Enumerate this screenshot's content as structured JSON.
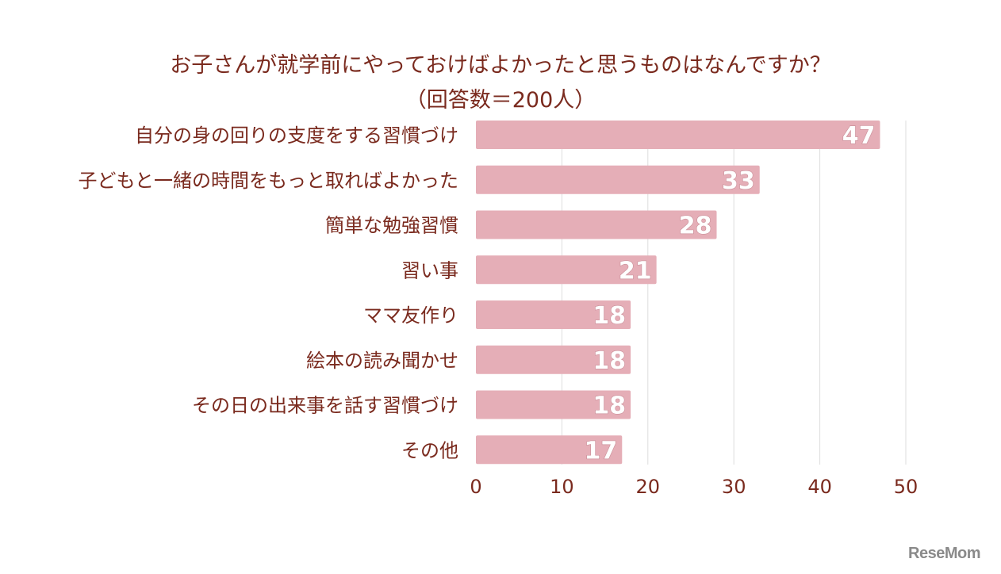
{
  "chart_data": {
    "type": "bar",
    "orientation": "horizontal",
    "title": "お子さんが就学前にやっておけばよかったと思うものはなんですか？",
    "subtitle": "（回答数＝200人）",
    "categories": [
      "自分の身の回りの支度をする習慣づけ",
      "子どもと一緒の時間をもっと取ればよかった",
      "簡単な勉強習慣",
      "習い事",
      "ママ友作り",
      "絵本の読み聞かせ",
      "その日の出来事を話す習慣づけ",
      "その他"
    ],
    "values": [
      47,
      33,
      28,
      21,
      18,
      18,
      18,
      17
    ],
    "xlim": [
      0,
      50
    ],
    "xticks": [
      0,
      10,
      20,
      30,
      40,
      50
    ],
    "grid": true,
    "data_labels": true,
    "colors": {
      "bar": "#e5aeb7",
      "label_text": "#ffffff",
      "text": "#7a2a1e",
      "grid": "#dddddd"
    }
  },
  "watermark": "ReseMom"
}
